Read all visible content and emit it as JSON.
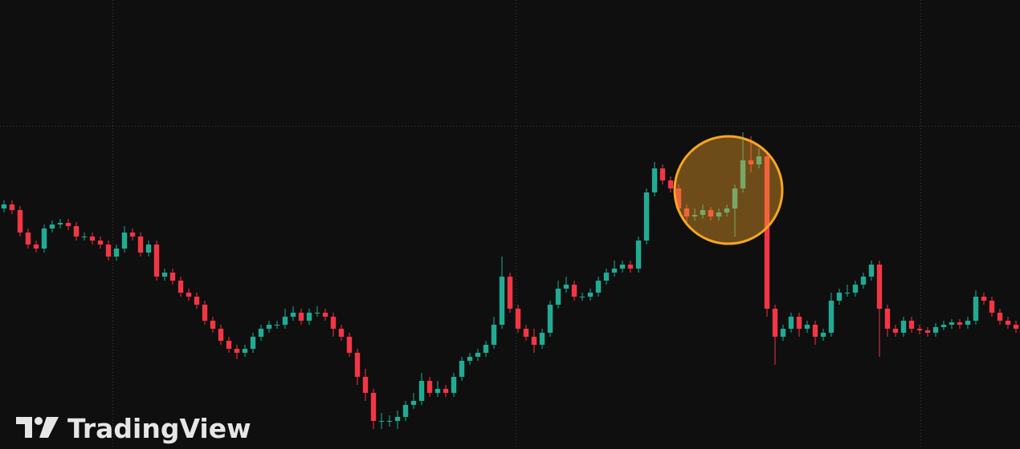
{
  "watermark": "TradingView",
  "chart_data": {
    "type": "candlestick",
    "xlim": [
      -0.5,
      126.5
    ],
    "ylim": [
      0,
      560
    ],
    "yticks": [
      403
    ],
    "xticks": [
      13.5,
      63.7,
      114.1
    ],
    "grid": true,
    "up_color": "#22ab94",
    "down_color": "#f23645",
    "open": [
      300,
      305,
      298,
      270,
      255,
      250,
      275,
      280,
      282,
      278,
      265,
      265,
      260,
      255,
      240,
      250,
      270,
      265,
      245,
      255,
      215,
      220,
      210,
      195,
      190,
      180,
      160,
      150,
      135,
      125,
      120,
      125,
      140,
      150,
      155,
      155,
      165,
      170,
      160,
      170,
      170,
      165,
      150,
      140,
      120,
      90,
      70,
      35,
      35,
      35,
      40,
      55,
      60,
      85,
      70,
      75,
      70,
      90,
      110,
      115,
      120,
      130,
      155,
      215,
      175,
      150,
      140,
      130,
      145,
      180,
      200,
      205,
      190,
      190,
      195,
      210,
      220,
      225,
      230,
      225,
      260,
      320,
      350,
      335,
      325,
      300,
      290,
      292,
      298,
      290,
      295,
      300,
      325,
      360,
      355,
      365,
      175,
      140,
      150,
      165,
      150,
      155,
      140,
      145,
      185,
      195,
      195,
      205,
      215,
      230,
      175,
      150,
      145,
      160,
      150,
      148,
      145,
      152,
      155,
      158,
      155,
      160,
      190,
      185,
      170,
      160,
      155
    ],
    "high": [
      310,
      310,
      303,
      275,
      260,
      280,
      285,
      287,
      287,
      283,
      270,
      270,
      265,
      260,
      255,
      278,
      275,
      270,
      260,
      260,
      225,
      225,
      215,
      200,
      195,
      185,
      165,
      155,
      140,
      130,
      130,
      145,
      155,
      160,
      160,
      175,
      178,
      175,
      175,
      178,
      175,
      170,
      155,
      145,
      125,
      100,
      75,
      45,
      42,
      48,
      60,
      70,
      95,
      90,
      85,
      80,
      95,
      115,
      120,
      125,
      135,
      165,
      240,
      220,
      180,
      155,
      150,
      150,
      185,
      210,
      215,
      210,
      195,
      200,
      215,
      225,
      235,
      235,
      235,
      265,
      325,
      358,
      355,
      340,
      330,
      305,
      300,
      305,
      302,
      300,
      305,
      330,
      395,
      390,
      375,
      370,
      180,
      155,
      170,
      170,
      160,
      160,
      150,
      195,
      200,
      205,
      210,
      220,
      235,
      235,
      180,
      155,
      165,
      165,
      155,
      152,
      157,
      160,
      162,
      162,
      165,
      198,
      195,
      190,
      175,
      165,
      160
    ],
    "low": [
      295,
      293,
      265,
      250,
      245,
      245,
      270,
      275,
      273,
      260,
      260,
      255,
      250,
      235,
      235,
      245,
      260,
      240,
      240,
      210,
      210,
      205,
      190,
      185,
      175,
      155,
      145,
      130,
      120,
      112,
      115,
      120,
      135,
      145,
      150,
      150,
      160,
      155,
      155,
      165,
      160,
      140,
      135,
      115,
      80,
      60,
      25,
      25,
      28,
      25,
      35,
      50,
      55,
      65,
      65,
      65,
      65,
      85,
      105,
      110,
      115,
      125,
      150,
      170,
      145,
      135,
      120,
      125,
      140,
      175,
      195,
      185,
      185,
      185,
      190,
      205,
      215,
      220,
      220,
      220,
      255,
      315,
      330,
      320,
      295,
      280,
      285,
      287,
      285,
      285,
      290,
      265,
      320,
      345,
      350,
      165,
      105,
      135,
      145,
      140,
      145,
      130,
      135,
      140,
      180,
      190,
      190,
      200,
      210,
      115,
      140,
      140,
      140,
      145,
      143,
      140,
      140,
      148,
      150,
      150,
      150,
      155,
      180,
      165,
      155,
      150,
      145
    ],
    "close": [
      305,
      298,
      270,
      255,
      250,
      275,
      280,
      282,
      278,
      265,
      265,
      260,
      255,
      240,
      250,
      270,
      265,
      245,
      255,
      215,
      220,
      210,
      195,
      190,
      180,
      160,
      150,
      135,
      125,
      120,
      125,
      140,
      150,
      155,
      155,
      165,
      170,
      160,
      170,
      170,
      165,
      150,
      140,
      120,
      90,
      70,
      35,
      35,
      35,
      40,
      55,
      60,
      85,
      70,
      75,
      70,
      90,
      110,
      115,
      120,
      130,
      155,
      215,
      175,
      150,
      140,
      130,
      145,
      180,
      200,
      205,
      190,
      190,
      195,
      210,
      220,
      225,
      230,
      225,
      260,
      320,
      350,
      335,
      325,
      300,
      290,
      292,
      298,
      290,
      295,
      300,
      325,
      360,
      355,
      365,
      175,
      140,
      150,
      165,
      150,
      155,
      140,
      145,
      185,
      195,
      195,
      205,
      215,
      230,
      175,
      150,
      145,
      160,
      150,
      148,
      145,
      152,
      155,
      158,
      155,
      160,
      190,
      185,
      170,
      160,
      155,
      150
    ]
  }
}
